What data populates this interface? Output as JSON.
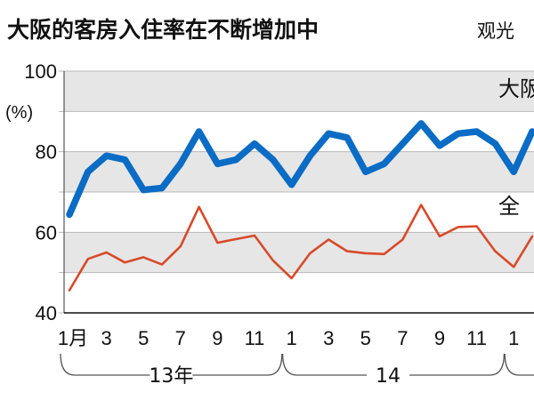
{
  "title": "大阪的客房入住率在不断增加中",
  "subtitle": "观光",
  "chart_data": {
    "type": "line",
    "unit_label": "(%)",
    "ylim": [
      40,
      100
    ],
    "yticks": [
      40,
      60,
      80,
      100
    ],
    "grid": "alternating horizontal bands",
    "x": [
      "2013-01",
      "2013-02",
      "2013-03",
      "2013-04",
      "2013-05",
      "2013-06",
      "2013-07",
      "2013-08",
      "2013-09",
      "2013-10",
      "2013-11",
      "2013-12",
      "2014-01",
      "2014-02",
      "2014-03",
      "2014-04",
      "2014-05",
      "2014-06",
      "2014-07",
      "2014-08",
      "2014-09",
      "2014-10",
      "2014-11",
      "2014-12",
      "2015-01",
      "2015-02"
    ],
    "x_tick_labels": [
      "1月",
      "",
      "3",
      "",
      "5",
      "",
      "7",
      "",
      "9",
      "",
      "11",
      "",
      "1",
      "",
      "3",
      "",
      "5",
      "",
      "7",
      "",
      "9",
      "",
      "11",
      "",
      "1",
      ""
    ],
    "year_labels": [
      {
        "text": "13年",
        "start_index": 0,
        "end_index": 11
      },
      {
        "text": "14",
        "start_index": 12,
        "end_index": 23
      },
      {
        "text": "",
        "start_index": 24,
        "end_index": 25
      }
    ],
    "series": [
      {
        "name": "大阪",
        "color": "#0a6cc4",
        "values": [
          64.4,
          75.0,
          79.0,
          78.0,
          70.5,
          71.0,
          77.0,
          85.0,
          77.0,
          78.0,
          82.0,
          78.0,
          71.8,
          79.0,
          84.5,
          83.5,
          75.0,
          77.0,
          82.0,
          87.0,
          81.5,
          84.5,
          85.0,
          82.0,
          75.0,
          85.0
        ]
      },
      {
        "name": "全",
        "color": "#d84a2a",
        "values": [
          45.6,
          53.4,
          55.0,
          52.5,
          53.8,
          52.0,
          56.5,
          66.3,
          57.4,
          58.3,
          59.2,
          53.0,
          48.6,
          54.8,
          58.2,
          55.3,
          54.8,
          54.6,
          58.2,
          66.8,
          59.0,
          61.3,
          61.5,
          55.3,
          51.4,
          59.0
        ]
      }
    ],
    "label_positions": {
      "大阪": "right",
      "全": "right"
    }
  }
}
